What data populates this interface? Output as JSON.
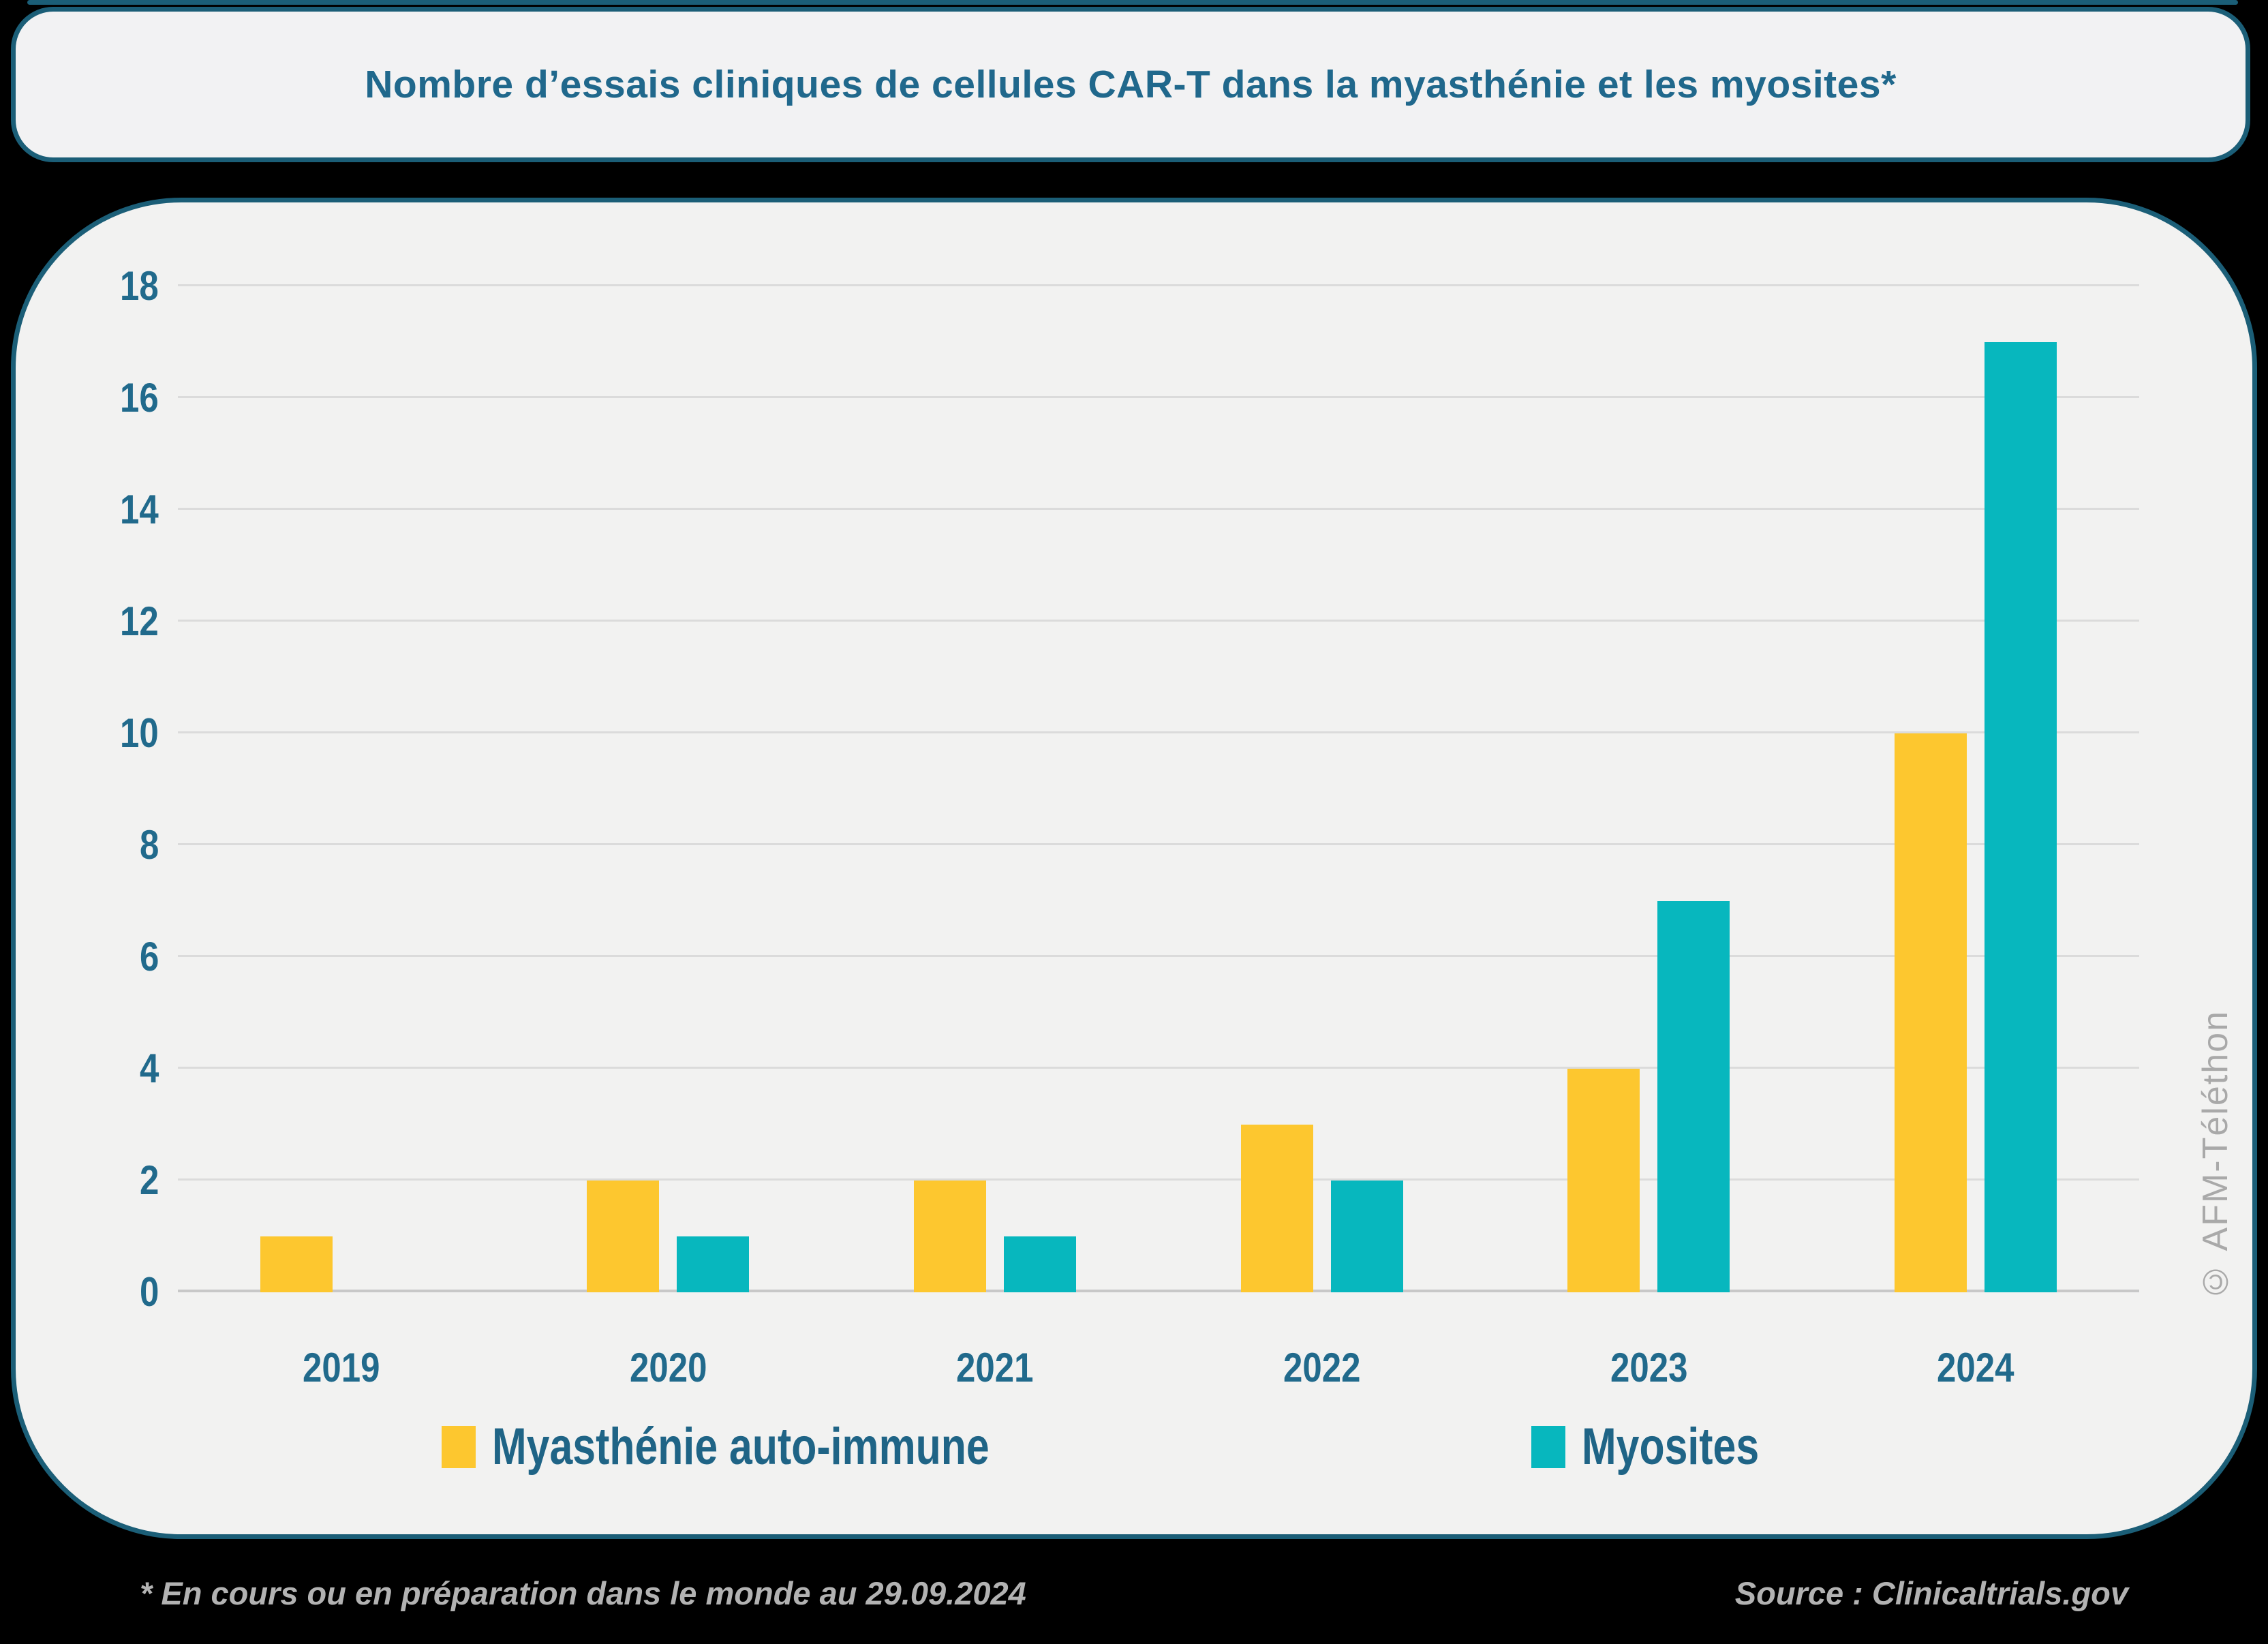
{
  "title": "Nombre d’essais cliniques de cellules CAR-T dans la myasthénie et les myosites*",
  "watermark": "© AFM-Téléthon",
  "footer": {
    "note": "* En cours ou en préparation dans le monde au 29.09.2024",
    "source": "Source : Clinicaltrials.gov"
  },
  "colors": {
    "page_bg": "#000000",
    "panel_bg": "#F2F2F1",
    "border_teal": "#1B5E77",
    "text_blue": "#20688C",
    "gridline": "#DBDBDB",
    "baseline": "#C8C8C8",
    "footer_gray": "#B2B2B2",
    "watermark_gray": "#A9A9A9",
    "series_myasthenie": "#FDC72F",
    "series_myosites": "#07B7BE"
  },
  "chart_data": {
    "type": "bar",
    "title": "Nombre d’essais cliniques de cellules CAR-T dans la myasthénie et les myosites*",
    "categories": [
      "2019",
      "2020",
      "2021",
      "2022",
      "2023",
      "2024"
    ],
    "series": [
      {
        "name": "Myasthénie auto-immune",
        "color": "#FDC72F",
        "values": [
          1,
          2,
          2,
          3,
          4,
          10
        ]
      },
      {
        "name": "Myosites",
        "color": "#07B7BE",
        "values": [
          0,
          1,
          1,
          2,
          7,
          17
        ]
      }
    ],
    "xlabel": "",
    "ylabel": "",
    "ylim": [
      0,
      18
    ],
    "ytick_step": 2,
    "grid": true,
    "legend_position": "bottom"
  }
}
